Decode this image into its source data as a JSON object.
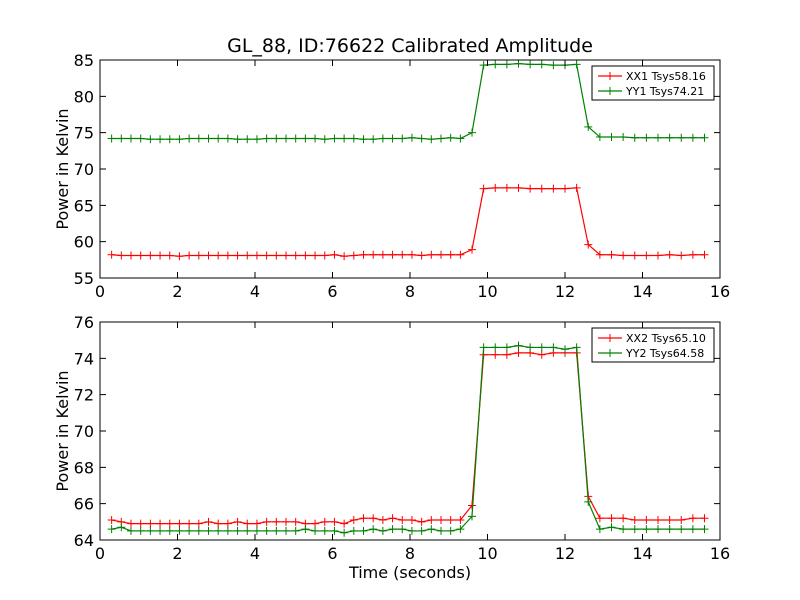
{
  "chart_data": [
    {
      "type": "line",
      "title": "GL_88, ID:76622 Calibrated Amplitude",
      "xlabel": "",
      "ylabel": "Power in Kelvin",
      "xlim": [
        0,
        16
      ],
      "ylim": [
        55,
        85
      ],
      "xticks": [
        0,
        2,
        4,
        6,
        8,
        10,
        12,
        14,
        16
      ],
      "yticks": [
        55,
        60,
        65,
        70,
        75,
        80,
        85
      ],
      "grid": false,
      "legend": "top-right",
      "x": [
        0.3,
        0.55,
        0.8,
        1.05,
        1.3,
        1.55,
        1.8,
        2.05,
        2.3,
        2.55,
        2.8,
        3.05,
        3.3,
        3.55,
        3.8,
        4.05,
        4.3,
        4.55,
        4.8,
        5.05,
        5.3,
        5.55,
        5.8,
        6.05,
        6.3,
        6.55,
        6.8,
        7.05,
        7.3,
        7.55,
        7.8,
        8.05,
        8.3,
        8.55,
        8.8,
        9.05,
        9.3,
        9.6,
        9.9,
        10.2,
        10.5,
        10.8,
        11.1,
        11.4,
        11.7,
        12.0,
        12.3,
        12.6,
        12.9,
        13.2,
        13.5,
        13.8,
        14.1,
        14.4,
        14.7,
        15.0,
        15.3,
        15.6
      ],
      "series": [
        {
          "name": "XX1 Tsys58.16",
          "color": "#ff0000",
          "values": [
            58.2,
            58.1,
            58.1,
            58.1,
            58.1,
            58.1,
            58.1,
            58.0,
            58.1,
            58.1,
            58.1,
            58.1,
            58.1,
            58.1,
            58.1,
            58.1,
            58.1,
            58.1,
            58.1,
            58.1,
            58.1,
            58.1,
            58.1,
            58.2,
            58.0,
            58.1,
            58.2,
            58.2,
            58.2,
            58.2,
            58.2,
            58.2,
            58.1,
            58.2,
            58.2,
            58.2,
            58.2,
            58.9,
            67.3,
            67.4,
            67.4,
            67.4,
            67.3,
            67.3,
            67.3,
            67.3,
            67.4,
            59.6,
            58.2,
            58.2,
            58.1,
            58.1,
            58.1,
            58.1,
            58.2,
            58.1,
            58.2,
            58.2
          ]
        },
        {
          "name": "YY1 Tsys74.21",
          "color": "#008000",
          "values": [
            74.2,
            74.2,
            74.2,
            74.2,
            74.1,
            74.1,
            74.1,
            74.1,
            74.2,
            74.2,
            74.2,
            74.2,
            74.2,
            74.1,
            74.1,
            74.1,
            74.2,
            74.2,
            74.2,
            74.2,
            74.2,
            74.2,
            74.1,
            74.2,
            74.2,
            74.2,
            74.1,
            74.1,
            74.2,
            74.2,
            74.2,
            74.3,
            74.2,
            74.1,
            74.2,
            74.3,
            74.2,
            75.0,
            84.3,
            84.4,
            84.4,
            84.5,
            84.4,
            84.4,
            84.3,
            84.3,
            84.4,
            75.8,
            74.4,
            74.4,
            74.4,
            74.3,
            74.3,
            74.3,
            74.3,
            74.3,
            74.3,
            74.3
          ]
        }
      ]
    },
    {
      "type": "line",
      "title": "",
      "xlabel": "Time (seconds)",
      "ylabel": "Power in Kelvin",
      "xlim": [
        0,
        16
      ],
      "ylim": [
        64,
        76
      ],
      "xticks": [
        0,
        2,
        4,
        6,
        8,
        10,
        12,
        14,
        16
      ],
      "yticks": [
        64,
        66,
        68,
        70,
        72,
        74,
        76
      ],
      "grid": false,
      "legend": "top-right",
      "x": [
        0.3,
        0.55,
        0.8,
        1.05,
        1.3,
        1.55,
        1.8,
        2.05,
        2.3,
        2.55,
        2.8,
        3.05,
        3.3,
        3.55,
        3.8,
        4.05,
        4.3,
        4.55,
        4.8,
        5.05,
        5.3,
        5.55,
        5.8,
        6.05,
        6.3,
        6.55,
        6.8,
        7.05,
        7.3,
        7.55,
        7.8,
        8.05,
        8.3,
        8.55,
        8.8,
        9.05,
        9.3,
        9.6,
        9.9,
        10.2,
        10.5,
        10.8,
        11.1,
        11.4,
        11.7,
        12.0,
        12.3,
        12.6,
        12.9,
        13.2,
        13.5,
        13.8,
        14.1,
        14.4,
        14.7,
        15.0,
        15.3,
        15.6
      ],
      "series": [
        {
          "name": "XX2 Tsys65.10",
          "color": "#ff0000",
          "values": [
            65.1,
            65.0,
            64.9,
            64.9,
            64.9,
            64.9,
            64.9,
            64.9,
            64.9,
            64.9,
            65.0,
            64.9,
            64.9,
            65.0,
            64.9,
            64.9,
            65.0,
            65.0,
            65.0,
            65.0,
            64.9,
            64.9,
            65.0,
            65.0,
            64.9,
            65.1,
            65.2,
            65.2,
            65.1,
            65.2,
            65.1,
            65.1,
            65.0,
            65.1,
            65.1,
            65.1,
            65.1,
            65.9,
            74.2,
            74.2,
            74.2,
            74.3,
            74.3,
            74.2,
            74.3,
            74.3,
            74.3,
            66.4,
            65.2,
            65.2,
            65.2,
            65.1,
            65.1,
            65.1,
            65.1,
            65.1,
            65.2,
            65.2
          ]
        },
        {
          "name": "YY2 Tsys64.58",
          "color": "#008000",
          "values": [
            64.6,
            64.7,
            64.5,
            64.5,
            64.5,
            64.5,
            64.5,
            64.5,
            64.5,
            64.5,
            64.5,
            64.5,
            64.5,
            64.5,
            64.5,
            64.5,
            64.5,
            64.5,
            64.5,
            64.5,
            64.6,
            64.5,
            64.5,
            64.5,
            64.4,
            64.5,
            64.5,
            64.6,
            64.5,
            64.6,
            64.6,
            64.5,
            64.5,
            64.6,
            64.5,
            64.5,
            64.6,
            65.3,
            74.6,
            74.6,
            74.6,
            74.7,
            74.6,
            74.6,
            74.6,
            74.5,
            74.6,
            66.1,
            64.6,
            64.7,
            64.6,
            64.6,
            64.6,
            64.6,
            64.6,
            64.6,
            64.6,
            64.6
          ]
        }
      ]
    }
  ]
}
